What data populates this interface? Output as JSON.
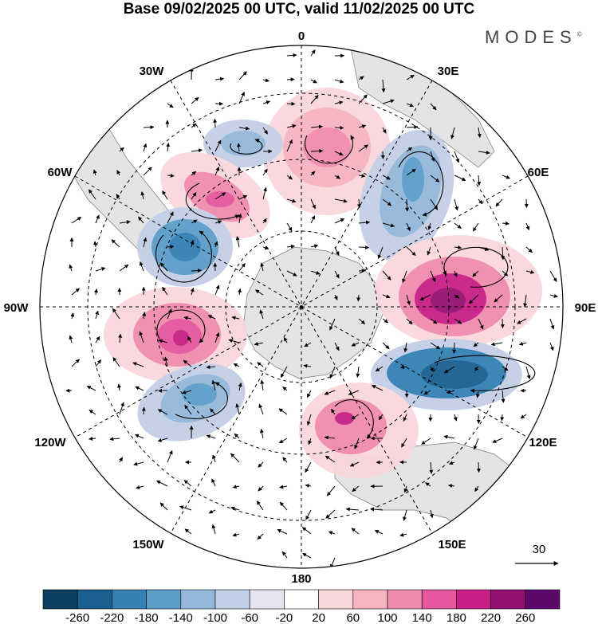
{
  "title": "Base 09/02/2025 00 UTC, valid 11/02/2025 00 UTC",
  "brand": {
    "name": "MODES",
    "mark": "©"
  },
  "map": {
    "projection": "south-polar-stereographic",
    "lon_labels": {
      "n": "0",
      "nne": "30E",
      "ene": "60E",
      "e": "90E",
      "ese": "120E",
      "sse": "150E",
      "s": "180",
      "ssw": "150W",
      "wsw": "120W",
      "w": "90W",
      "wnw": "60W",
      "nnw": "30W"
    },
    "anomaly_centers": [
      {
        "id": "ridge-north",
        "sign": "positive",
        "magnitude": 100
      },
      {
        "id": "trough-northwest",
        "sign": "negative",
        "magnitude": 100
      },
      {
        "id": "ridge-northwest",
        "sign": "positive",
        "magnitude": 140
      },
      {
        "id": "trough-west-upper",
        "sign": "negative",
        "magnitude": 180
      },
      {
        "id": "ridge-west",
        "sign": "positive",
        "magnitude": 180
      },
      {
        "id": "trough-southwest",
        "sign": "negative",
        "magnitude": 140
      },
      {
        "id": "trough-northeast",
        "sign": "negative",
        "magnitude": 140
      },
      {
        "id": "ridge-east",
        "sign": "positive",
        "magnitude": 220
      },
      {
        "id": "trough-east",
        "sign": "negative",
        "magnitude": 220
      },
      {
        "id": "ridge-southeast",
        "sign": "positive",
        "magnitude": 140
      }
    ]
  },
  "vector_key": {
    "label": "30"
  },
  "colorbar": {
    "ticks": [
      "-260",
      "-220",
      "-180",
      "-140",
      "-100",
      "-60",
      "-20",
      "20",
      "60",
      "100",
      "140",
      "180",
      "220",
      "260"
    ],
    "colors": [
      "#0c3d5e",
      "#1a5f8f",
      "#3380b5",
      "#5d9ec9",
      "#94b8da",
      "#c3cfe6",
      "#e5e5f1",
      "#ffffff",
      "#f9d7dc",
      "#f6b3c0",
      "#f08cae",
      "#e4569e",
      "#c91f87",
      "#941070",
      "#5b0a6b"
    ]
  }
}
